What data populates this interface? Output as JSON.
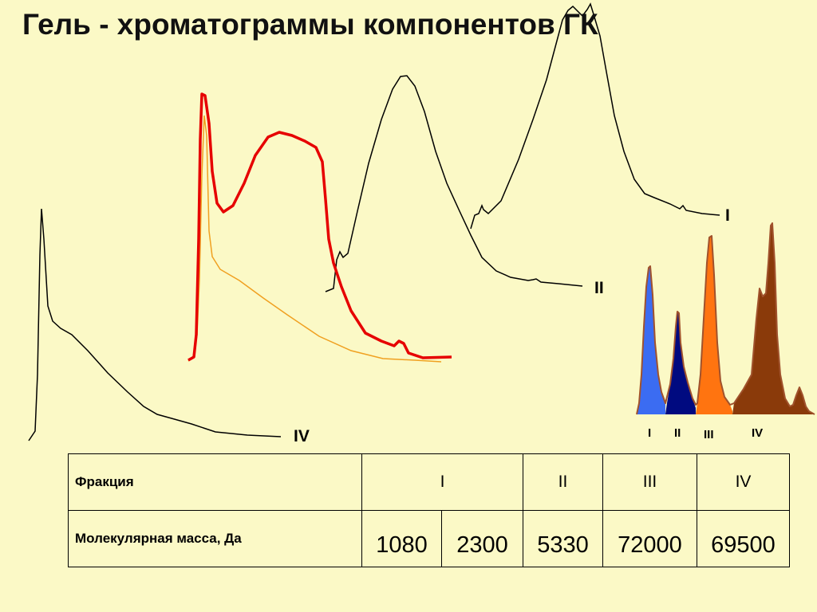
{
  "title": "Гель - хроматограммы компонентов ГК",
  "chart_data": [
    {
      "type": "line",
      "title": "",
      "series": [
        {
          "label": "I",
          "color": "#000000"
        },
        {
          "label": "II",
          "color": "#000000"
        },
        {
          "label": "IV",
          "color": "#000000"
        },
        {
          "label": "",
          "color": "#e60000"
        },
        {
          "label": "",
          "color": "#f0a020"
        }
      ]
    },
    {
      "type": "area",
      "title": "",
      "series": [
        {
          "label": "I",
          "color": "#3b6cf2"
        },
        {
          "label": "II",
          "color": "#000a80"
        },
        {
          "label": "III",
          "color": "#ff7410"
        },
        {
          "label": "IV",
          "color": "#8a3a0a"
        }
      ]
    }
  ],
  "table": {
    "fraction_label": "Фракция",
    "mass_label": "Молекулярная масса, Да",
    "fractions": [
      "I",
      "II",
      "III",
      "IV"
    ],
    "masses": [
      "1080",
      "2300",
      "5330",
      "72000",
      "69500"
    ]
  }
}
